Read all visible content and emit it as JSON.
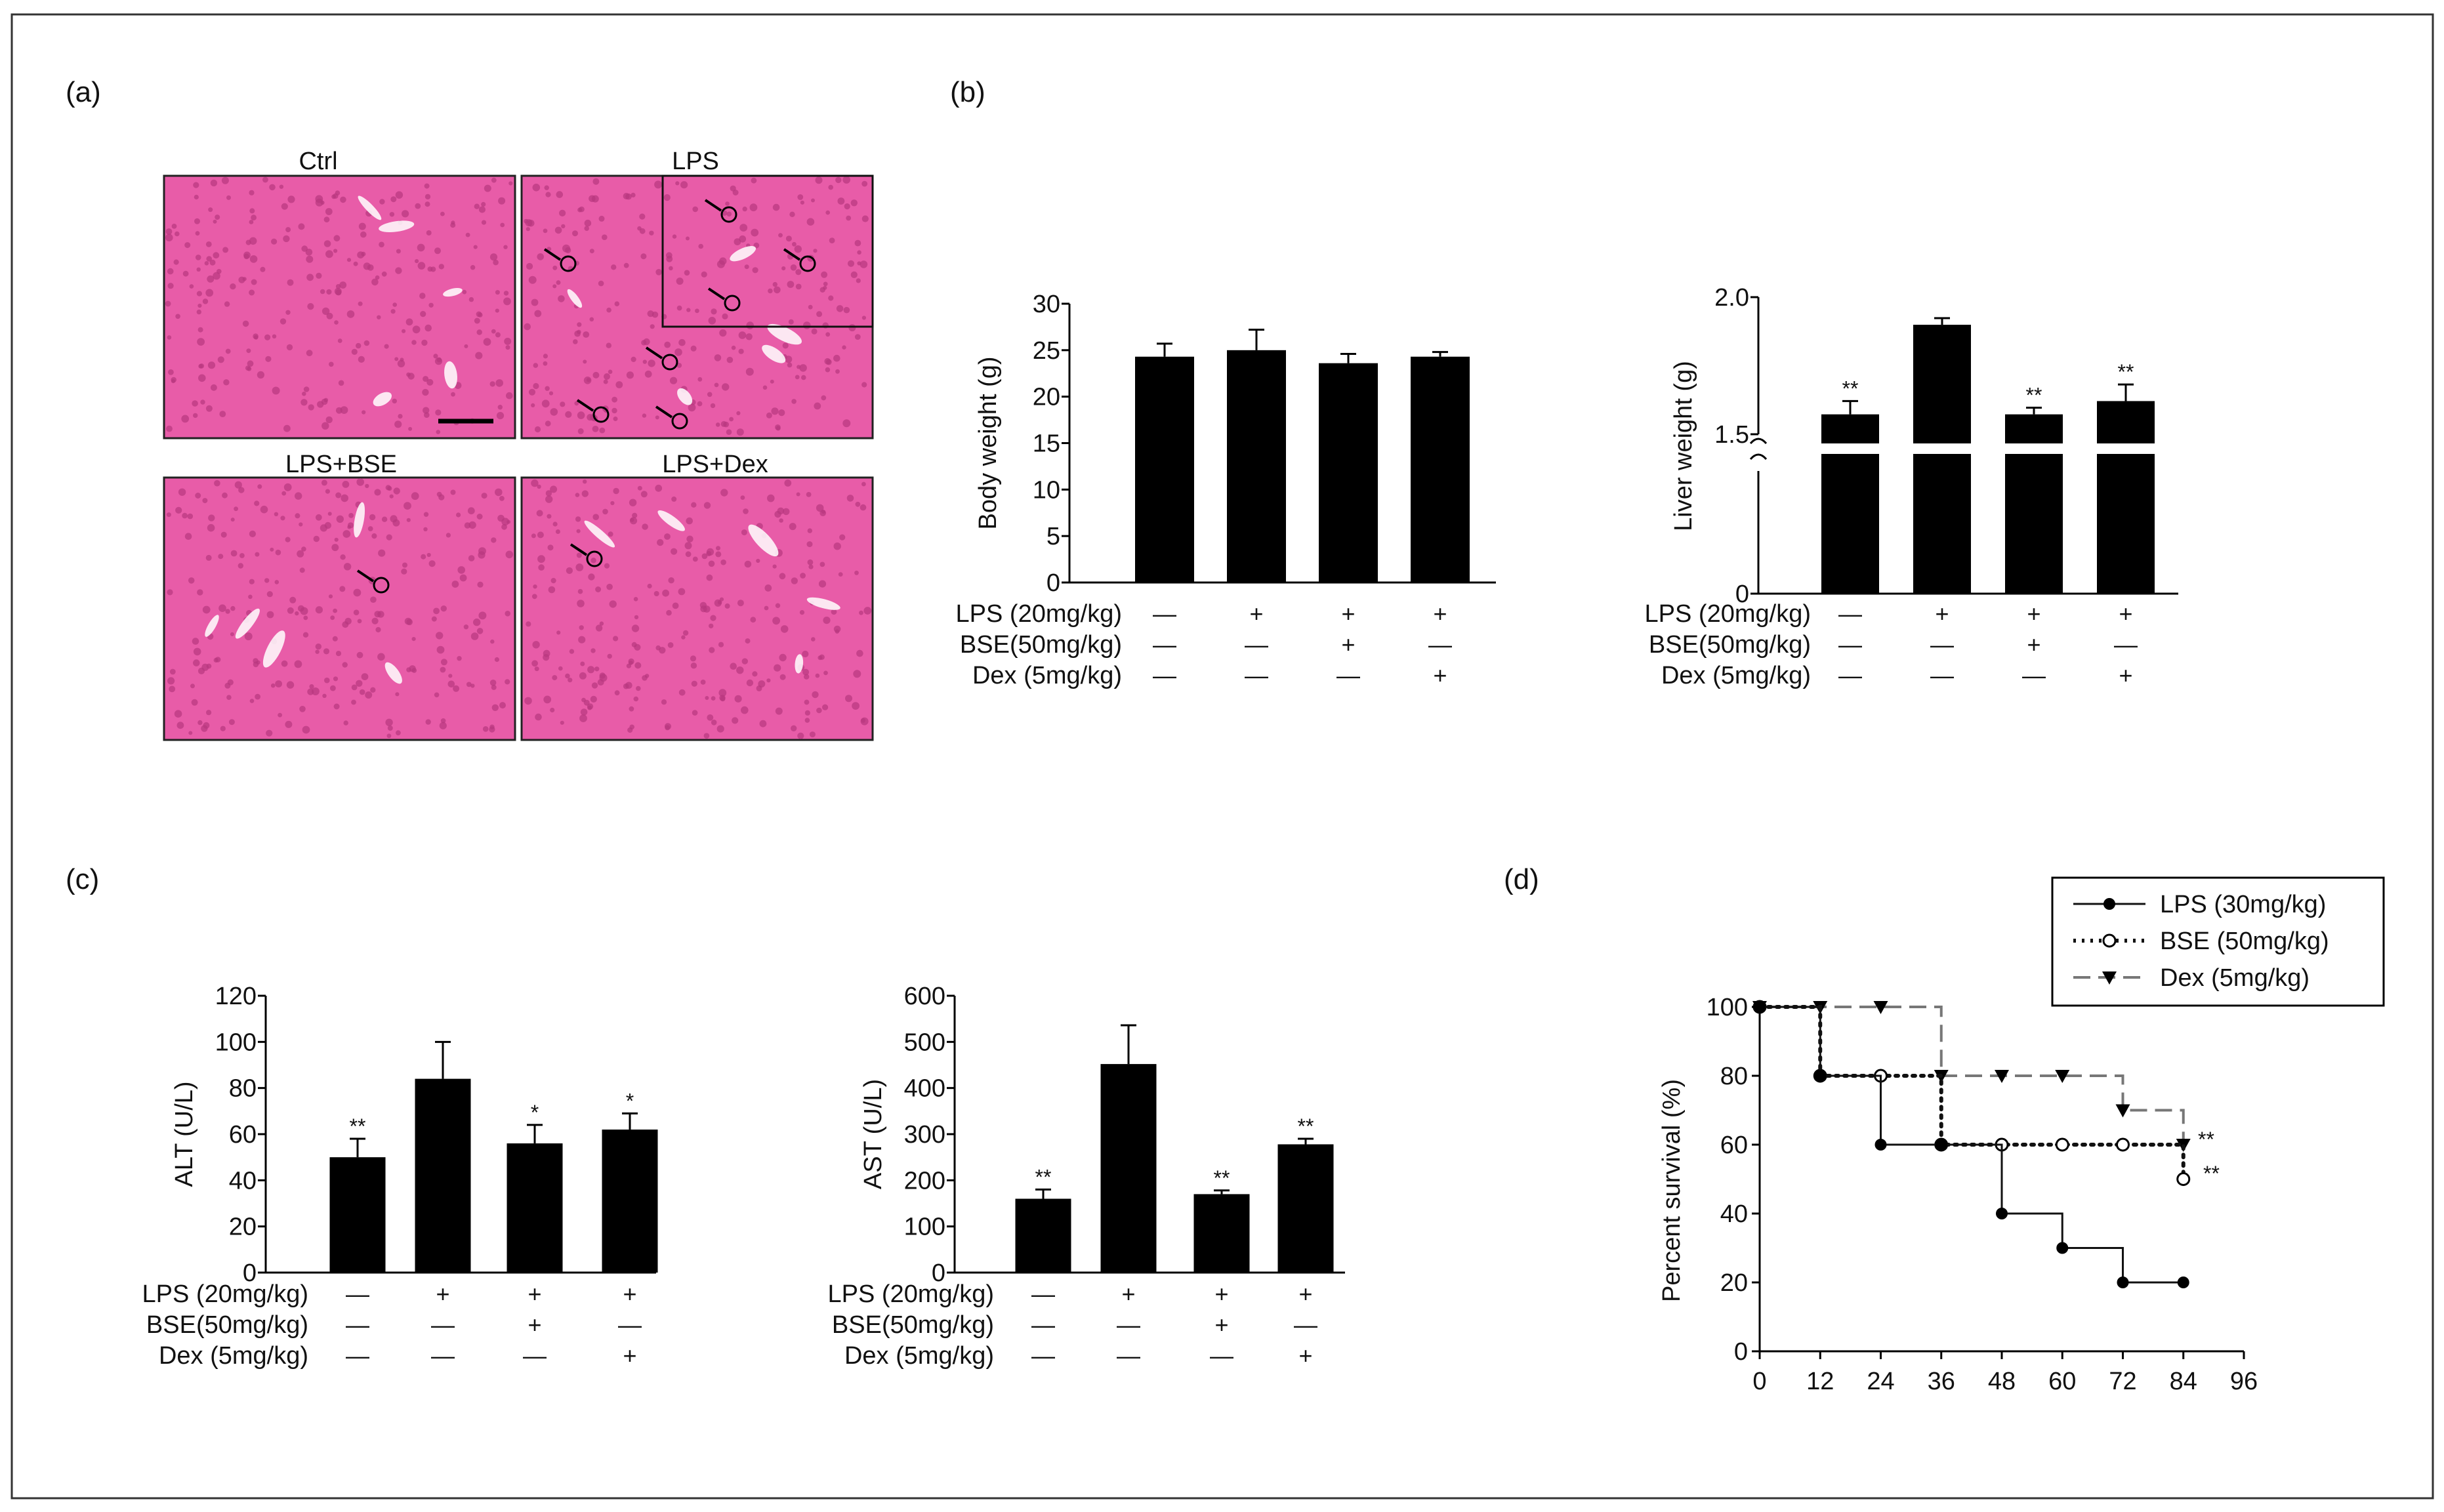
{
  "panel_labels": {
    "a": "(a)",
    "b": "(b)",
    "c": "(c)",
    "d": "(d)"
  },
  "histology": {
    "titles": [
      "Ctrl",
      "LPS",
      "LPS+BSE",
      "LPS+Dex"
    ],
    "stain_color": "#e85ca8",
    "nuclei_color": "#b8377f"
  },
  "treatment_rows": {
    "labels": [
      "LPS (20mg/kg)",
      "BSE(50mg/kg)",
      "Dex (5mg/kg)"
    ],
    "signs": [
      [
        "—",
        "+",
        "+",
        "+"
      ],
      [
        "—",
        "—",
        "+",
        "—"
      ],
      [
        "—",
        "—",
        "—",
        "+"
      ]
    ]
  },
  "chart_data": [
    {
      "id": "body-weight",
      "type": "bar",
      "ylabel": "Body weight (g)",
      "ylim": [
        0,
        30
      ],
      "yticks": [
        0,
        5,
        10,
        15,
        20,
        25,
        30
      ],
      "values": [
        24.3,
        25.0,
        23.6,
        24.3
      ],
      "errors": [
        1.4,
        2.2,
        1.0,
        0.5
      ],
      "annotations": [
        "",
        "",
        "",
        ""
      ]
    },
    {
      "id": "liver-weight",
      "type": "bar",
      "ylabel": "Liver weight (g)",
      "axis_break": true,
      "ytick_labels": [
        "0",
        "1.5",
        "2.0"
      ],
      "values": [
        1.56,
        1.83,
        1.56,
        1.6
      ],
      "errors": [
        0.04,
        0.02,
        0.02,
        0.05
      ],
      "annotations": [
        "**",
        "",
        "**",
        "**"
      ]
    },
    {
      "id": "alt",
      "type": "bar",
      "ylabel": "ALT (U/L)",
      "ylim": [
        0,
        120
      ],
      "yticks": [
        0,
        20,
        40,
        60,
        80,
        100,
        120
      ],
      "values": [
        50,
        84,
        56,
        62
      ],
      "errors": [
        8,
        16,
        8,
        7
      ],
      "annotations": [
        "**",
        "",
        "*",
        "*"
      ]
    },
    {
      "id": "ast",
      "type": "bar",
      "ylabel": "AST (U/L)",
      "ylim": [
        0,
        600
      ],
      "yticks": [
        0,
        100,
        200,
        300,
        400,
        500,
        600
      ],
      "values": [
        160,
        452,
        170,
        278
      ],
      "errors": [
        20,
        84,
        8,
        12
      ],
      "annotations": [
        "**",
        "",
        "**",
        "**"
      ]
    },
    {
      "id": "survival",
      "type": "line",
      "ylabel": "Percent survival (%)",
      "xlim": [
        0,
        96
      ],
      "ylim": [
        0,
        100
      ],
      "xticks": [
        0,
        12,
        24,
        36,
        48,
        60,
        72,
        84,
        96
      ],
      "yticks": [
        0,
        20,
        40,
        60,
        80,
        100
      ],
      "legend_position": "top-right",
      "series": [
        {
          "name": "LPS (30mg/kg)",
          "style": "solid",
          "marker": "filled-circle",
          "x": [
            0,
            12,
            24,
            36,
            48,
            60,
            72,
            84
          ],
          "y": [
            100,
            80,
            60,
            60,
            40,
            30,
            20,
            20
          ]
        },
        {
          "name": "BSE (50mg/kg)",
          "style": "dotted",
          "marker": "open-circle",
          "x": [
            0,
            12,
            24,
            36,
            48,
            60,
            72,
            84
          ],
          "y": [
            100,
            80,
            80,
            60,
            60,
            60,
            60,
            50
          ]
        },
        {
          "name": "Dex  (5mg/kg)",
          "style": "dashed",
          "marker": "filled-triangle",
          "x": [
            0,
            12,
            24,
            36,
            48,
            60,
            72,
            84
          ],
          "y": [
            100,
            100,
            100,
            80,
            80,
            80,
            70,
            60
          ]
        }
      ],
      "end_annotations": [
        "**",
        "**"
      ]
    }
  ]
}
